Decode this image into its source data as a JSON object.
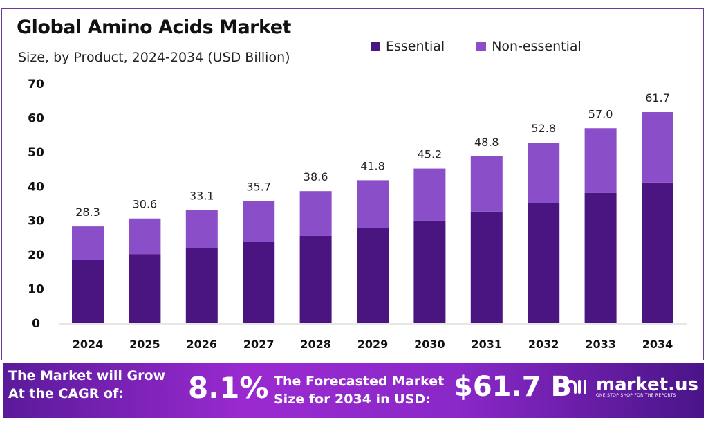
{
  "chart_data": {
    "type": "bar",
    "stacked": true,
    "title": "Global Amino Acids Market",
    "subtitle": "Size, by Product, 2024-2034 (USD Billion)",
    "categories": [
      "2024",
      "2025",
      "2026",
      "2027",
      "2028",
      "2029",
      "2030",
      "2031",
      "2032",
      "2033",
      "2034"
    ],
    "series": [
      {
        "name": "Essential",
        "color": "#4a1580",
        "values": [
          18.6,
          20.2,
          21.9,
          23.7,
          25.5,
          27.9,
          30.0,
          32.6,
          35.2,
          38.1,
          41.1
        ]
      },
      {
        "name": "Non-essential",
        "color": "#8a4ec8",
        "values": [
          9.7,
          10.4,
          11.2,
          12.0,
          13.1,
          13.9,
          15.2,
          16.2,
          17.6,
          18.9,
          20.6
        ]
      }
    ],
    "totals": [
      "28.3",
      "30.6",
      "33.1",
      "35.7",
      "38.6",
      "41.8",
      "45.2",
      "48.8",
      "52.8",
      "57.0",
      "61.7"
    ],
    "yticks": [
      "0",
      "10",
      "20",
      "30",
      "40",
      "50",
      "60",
      "70"
    ],
    "ylim": [
      0,
      70
    ],
    "xlabel": "",
    "ylabel": "",
    "legend_position": "top-right",
    "grid": false
  },
  "banner": {
    "cagr_label_1": "The Market will Grow",
    "cagr_label_2": "At the CAGR of:",
    "cagr_value": "8.1%",
    "forecast_label_1": "The Forecasted Market",
    "forecast_label_2": "Size for 2034 in USD:",
    "forecast_value": "$61.7 B",
    "logo_name": "market.us",
    "logo_tagline": "ONE STOP SHOP FOR THE REPORTS"
  }
}
